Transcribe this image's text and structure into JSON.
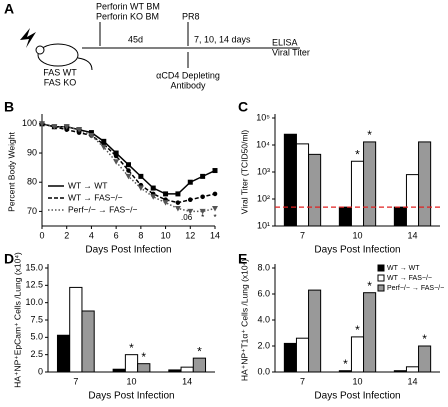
{
  "panel_a": {
    "letter": "A",
    "bm_wt": "Perforin WT BM",
    "bm_ko": "Perforin KO BM",
    "interval": "45d",
    "virus": "PR8",
    "days": "7, 10, 14 days",
    "assay1": "ELISA",
    "assay2": "Viral Titer",
    "mouse1": "FAS WT",
    "mouse2": "FAS KO",
    "antibody1": "αCD4 Depleting",
    "antibody2": "Antibody"
  },
  "chart_data": [
    {
      "type": "line",
      "panel": "B",
      "ylabel": "Percent Body Weight",
      "xlabel": "Days Post Infection",
      "x": [
        0,
        1,
        2,
        3,
        4,
        5,
        6,
        7,
        8,
        9,
        10,
        11,
        12,
        13,
        14
      ],
      "xlim": [
        0,
        14
      ],
      "xticks": [
        0,
        2,
        4,
        6,
        8,
        10,
        12,
        14
      ],
      "ylim": [
        65,
        102
      ],
      "yticks": [
        70,
        80,
        90,
        100
      ],
      "legend": "lower left",
      "series": [
        {
          "name": "WT → WT",
          "color": "#000000",
          "dash": "solid",
          "marker": "square",
          "values": [
            100,
            99,
            99,
            98,
            97,
            94,
            90,
            86,
            82,
            78,
            76,
            76,
            80,
            82,
            84
          ]
        },
        {
          "name": "WT → FAS−/−",
          "color": "#000000",
          "dash": "dashed",
          "marker": "circle",
          "values": [
            100,
            99,
            98,
            97,
            96,
            93,
            89,
            84,
            79,
            76,
            74,
            73,
            74,
            75,
            76
          ]
        },
        {
          "name": "Perf−/− → FAS−/−",
          "color": "#555555",
          "dash": "dotted",
          "marker": "triangle",
          "values": [
            100,
            99,
            99,
            98,
            96,
            92,
            87,
            82,
            78,
            75,
            73,
            71,
            70,
            70,
            71
          ]
        }
      ],
      "annotations": [
        {
          "text": ".06",
          "x": 11.7
        },
        {
          "text": "*",
          "x": 13
        },
        {
          "text": "*",
          "x": 14
        }
      ]
    },
    {
      "type": "bar",
      "panel": "C",
      "ylabel": "Viral Titer (TCID50/ml)",
      "xlabel": "Days Post Infection",
      "log_scale": true,
      "categories": [
        "7",
        "10",
        "14"
      ],
      "ylim": [
        10,
        100000
      ],
      "yticks": [
        {
          "value": 10,
          "label": "10¹"
        },
        {
          "value": 100,
          "label": "10²"
        },
        {
          "value": 1000,
          "label": "10³"
        },
        {
          "value": 10000,
          "label": "10⁴"
        },
        {
          "value": 100000,
          "label": "10⁵"
        }
      ],
      "reference_line": {
        "value": 50,
        "color": "#e02020"
      },
      "series": [
        {
          "name": "WT → WT",
          "color": "#000000",
          "values": [
            25000,
            50,
            50
          ],
          "annotations": [
            null,
            null,
            null
          ]
        },
        {
          "name": "WT → FAS−/−",
          "color": "#ffffff",
          "values": [
            11000,
            2500,
            800
          ],
          "annotations": [
            null,
            "*",
            null
          ]
        },
        {
          "name": "Perf−/− → FAS−/−",
          "color": "#999999",
          "values": [
            4500,
            13000,
            13000
          ],
          "annotations": [
            null,
            "*",
            null
          ]
        }
      ]
    },
    {
      "type": "bar",
      "panel": "D",
      "ylabel": "HA⁺NP⁺EpCam⁺ Cells /Lung (x10⁴)",
      "xlabel": "Days Post Infection",
      "categories": [
        "7",
        "10",
        "14"
      ],
      "ylim": [
        0,
        15
      ],
      "yticks": [
        0,
        {
          "value": 2.5,
          "label": "2.5"
        },
        {
          "value": 5,
          "label": "5.0"
        },
        {
          "value": 7.5,
          "label": "7.5"
        },
        {
          "value": 10,
          "label": "10.0"
        },
        {
          "value": 12.5,
          "label": "12.5"
        },
        {
          "value": 15,
          "label": "15.0"
        }
      ],
      "series": [
        {
          "name": "WT → WT",
          "color": "#000000",
          "values": [
            5.3,
            0.4,
            0.3
          ],
          "annotations": [
            null,
            null,
            null
          ]
        },
        {
          "name": "WT → FAS−/−",
          "color": "#ffffff",
          "values": [
            12.2,
            2.5,
            0.7
          ],
          "annotations": [
            null,
            "*",
            null
          ]
        },
        {
          "name": "Perf−/− → FAS−/−",
          "color": "#999999",
          "values": [
            8.8,
            1.2,
            2.0
          ],
          "annotations": [
            null,
            "*",
            "*"
          ]
        }
      ]
    },
    {
      "type": "bar",
      "panel": "E",
      "ylabel": "HA⁺NP⁺T1α⁺ Cells /Lung (x10⁴)",
      "xlabel": "Days Post Infection",
      "categories": [
        "7",
        "10",
        "14"
      ],
      "ylim": [
        0,
        8
      ],
      "legend": "upper right",
      "yticks": [
        {
          "value": 0,
          "label": "0.0"
        },
        {
          "value": 2,
          "label": "2.0"
        },
        {
          "value": 4,
          "label": "4.0"
        },
        {
          "value": 6,
          "label": "6.0"
        },
        {
          "value": 8,
          "label": "8.0"
        }
      ],
      "series": [
        {
          "name": "WT → WT",
          "color": "#000000",
          "values": [
            2.2,
            0.1,
            0.1
          ],
          "annotations": [
            null,
            "*",
            null
          ]
        },
        {
          "name": "WT → FAS−/−",
          "color": "#ffffff",
          "values": [
            2.6,
            2.7,
            0.4
          ],
          "annotations": [
            null,
            "*",
            null
          ]
        },
        {
          "name": "Perf−/− → FAS−/−",
          "color": "#999999",
          "values": [
            6.3,
            6.1,
            2.0
          ],
          "annotations": [
            null,
            "*",
            "*"
          ]
        }
      ]
    }
  ]
}
